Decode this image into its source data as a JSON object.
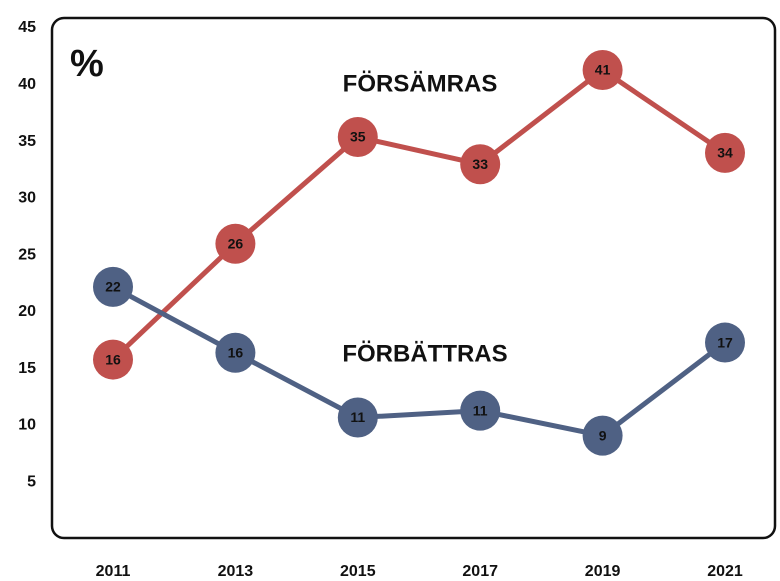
{
  "chart_data": {
    "type": "line",
    "unit_label": "%",
    "categories": [
      "2011",
      "2013",
      "2015",
      "2017",
      "2019",
      "2021"
    ],
    "series": [
      {
        "name": "FÖRSÄMRAS",
        "color": "#c0504d",
        "values": [
          15.8,
          26,
          35.4,
          33,
          41.3,
          34
        ],
        "value_labels": [
          "16",
          "26",
          "35",
          "33",
          "41",
          "34"
        ]
      },
      {
        "name": "FÖRBÄTTRAS",
        "color": "#4f6184",
        "values": [
          22.2,
          16.4,
          10.7,
          11.3,
          9.1,
          17.3
        ],
        "value_labels": [
          "22",
          "16",
          "11",
          "11",
          "9",
          "17"
        ]
      }
    ],
    "ylim": [
      0,
      45
    ],
    "yticks": [
      5,
      10,
      15,
      20,
      25,
      30,
      35,
      40,
      45
    ],
    "grid": false
  }
}
